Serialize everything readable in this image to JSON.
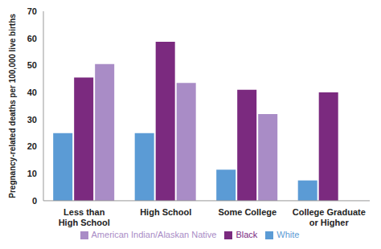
{
  "chart_data": {
    "type": "bar",
    "y_label": "Pregnancy-related deaths per 100,000 live births",
    "categories": [
      "Less than High School",
      "High School",
      "Some College",
      "College Graduate or Higher"
    ],
    "series": [
      {
        "name": "White",
        "color": "#5b9bd5",
        "values": [
          25,
          25,
          11.5,
          7.5
        ]
      },
      {
        "name": "Black",
        "color": "#7b2a7f",
        "values": [
          45.5,
          58.7,
          41,
          40
        ]
      },
      {
        "name": "American Indian/Alaskan Native",
        "color": "#a98cc6",
        "values": [
          50.5,
          43.5,
          32,
          null
        ]
      }
    ],
    "ylim": [
      0,
      70
    ],
    "yticks": [
      0,
      10,
      20,
      30,
      40,
      50,
      60,
      70
    ],
    "grid": false,
    "legend": "bottom"
  }
}
